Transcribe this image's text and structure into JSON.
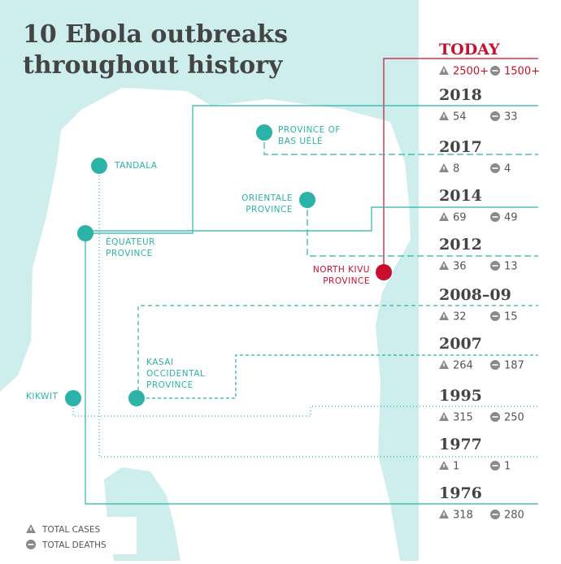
{
  "title": [
    "10 Ebola outbreaks",
    "throughout history"
  ],
  "outbreaks": [
    {
      "year": "TODAY",
      "cases": "2500+",
      "deaths": "1500+"
    },
    {
      "year": "2018",
      "cases": 54,
      "deaths": 33
    },
    {
      "year": "2017",
      "cases": 8,
      "deaths": 4
    },
    {
      "year": "2014",
      "cases": 69,
      "deaths": 49
    },
    {
      "year": "2012",
      "cases": 36,
      "deaths": 13
    },
    {
      "year": "2008–09",
      "cases": 32,
      "deaths": 15
    },
    {
      "year": "2007",
      "cases": 264,
      "deaths": 187
    },
    {
      "year": "1995",
      "cases": 315,
      "deaths": 250
    },
    {
      "year": "1977",
      "cases": 1,
      "deaths": 1
    },
    {
      "year": "1976",
      "cases": 318,
      "deaths": 280
    }
  ],
  "locations": [
    {
      "lines": [
        "PROVINCE OF",
        "BAS UÉLÉ"
      ]
    },
    {
      "lines": [
        "TANDALA"
      ]
    },
    {
      "lines": [
        "ORIENTALE",
        "PROVINCE"
      ]
    },
    {
      "lines": [
        "ÉQUATEUR",
        "PROVINCE"
      ]
    },
    {
      "lines": [
        "NORTH KIVU",
        "PROVINCE"
      ]
    },
    {
      "lines": [
        "KASAI",
        "OCCIDENTAL",
        "PROVINCE"
      ]
    },
    {
      "lines": [
        "KIKWIT"
      ]
    }
  ],
  "legend": {
    "cases": "TOTAL CASES",
    "deaths": "TOTAL DEATHS"
  }
}
